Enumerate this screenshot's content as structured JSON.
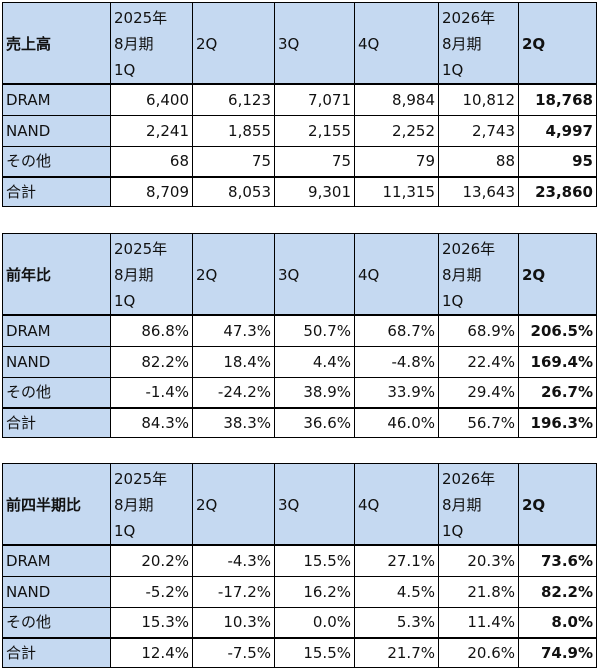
{
  "headers": {
    "col1": [
      "2025年",
      "8月期",
      "1Q"
    ],
    "col2": "2Q",
    "col3": "3Q",
    "col4": "4Q",
    "col5": [
      "2026年",
      "8月期",
      "1Q"
    ],
    "col6": "2Q"
  },
  "tables": [
    {
      "title": "売上高",
      "rows": [
        {
          "label": "DRAM",
          "values": [
            "6,400",
            "6,123",
            "7,071",
            "8,984",
            "10,812",
            "18,768"
          ]
        },
        {
          "label": "NAND",
          "values": [
            "2,241",
            "1,855",
            "2,155",
            "2,252",
            "2,743",
            "4,997"
          ]
        },
        {
          "label": "その他",
          "values": [
            "68",
            "75",
            "75",
            "79",
            "88",
            "95"
          ]
        }
      ],
      "total": {
        "label": "合計",
        "values": [
          "8,709",
          "8,053",
          "9,301",
          "11,315",
          "13,643",
          "23,860"
        ]
      }
    },
    {
      "title": "前年比",
      "rows": [
        {
          "label": "DRAM",
          "values": [
            "86.8%",
            "47.3%",
            "50.7%",
            "68.7%",
            "68.9%",
            "206.5%"
          ]
        },
        {
          "label": "NAND",
          "values": [
            "82.2%",
            "18.4%",
            "4.4%",
            "-4.8%",
            "22.4%",
            "169.4%"
          ]
        },
        {
          "label": "その他",
          "values": [
            "-1.4%",
            "-24.2%",
            "38.9%",
            "33.9%",
            "29.4%",
            "26.7%"
          ]
        }
      ],
      "total": {
        "label": "合計",
        "values": [
          "84.3%",
          "38.3%",
          "36.6%",
          "46.0%",
          "56.7%",
          "196.3%"
        ]
      }
    },
    {
      "title": "前四半期比",
      "rows": [
        {
          "label": "DRAM",
          "values": [
            "20.2%",
            "-4.3%",
            "15.5%",
            "27.1%",
            "20.3%",
            "73.6%"
          ]
        },
        {
          "label": "NAND",
          "values": [
            "-5.2%",
            "-17.2%",
            "16.2%",
            "4.5%",
            "21.8%",
            "82.2%"
          ]
        },
        {
          "label": "その他",
          "values": [
            "15.3%",
            "10.3%",
            "0.0%",
            "5.3%",
            "11.4%",
            "8.0%"
          ]
        }
      ],
      "total": {
        "label": "合計",
        "values": [
          "12.4%",
          "-7.5%",
          "15.5%",
          "21.7%",
          "20.6%",
          "74.9%"
        ]
      }
    }
  ]
}
